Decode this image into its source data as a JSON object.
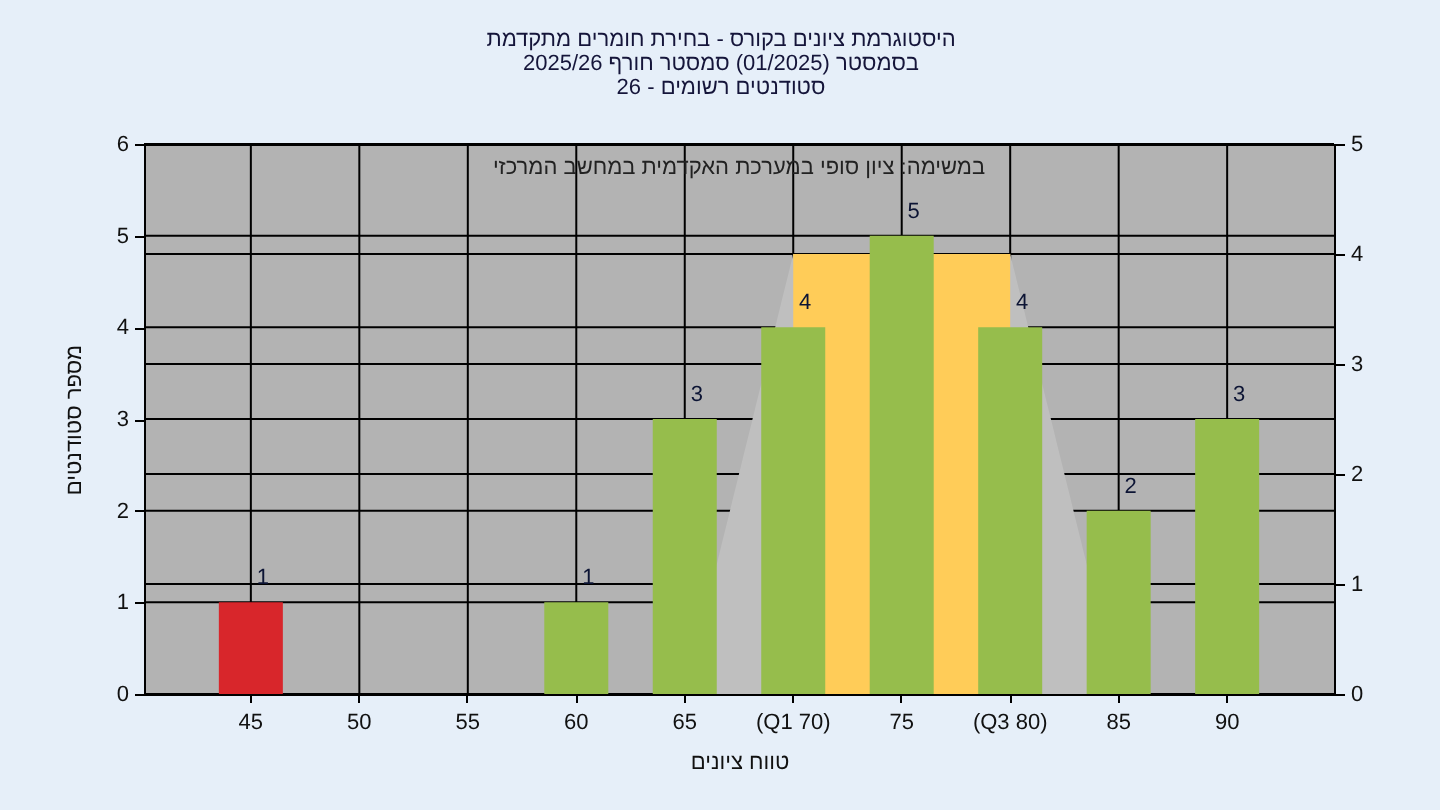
{
  "chart_data": {
    "type": "bar",
    "title": "היסטוגרמת ציונים בקורס - בחירת חומרים מתקדמת\nבסמסטר (01/2025) סמסטר חורף 2025/26\nסטודנטים רשומים - 26",
    "annotations": [
      "במשימה: ציון סופי במערכת האקדמית במחשב המרכזי"
    ],
    "xlabel": "טווח ציונים",
    "ylabel": "מספר סטודנטים",
    "categories": [
      "45",
      "50",
      "55",
      "60",
      "65",
      "(Q1 70)",
      "75",
      "(Q3 80)",
      "85",
      "90"
    ],
    "ylim": [
      0,
      6
    ],
    "yticks": [
      0,
      1,
      2,
      3,
      4,
      5,
      6
    ],
    "y2lim": [
      0,
      5
    ],
    "y2ticks": [
      0,
      1,
      2,
      3,
      4,
      5
    ],
    "grid": true,
    "series": [
      {
        "type": "area",
        "axis": "y2",
        "color": "#bfbfbf",
        "values": [
          null,
          null,
          null,
          null,
          0,
          4,
          null,
          4,
          0,
          0
        ]
      },
      {
        "type": "area",
        "axis": "y2",
        "color": "#ffcc58",
        "values": [
          null,
          null,
          null,
          null,
          null,
          4,
          null,
          4,
          null,
          null
        ]
      },
      {
        "colors": [
          "#d8262b",
          "#96bd4c",
          "#96bd4c",
          "#96bd4c",
          "#96bd4c",
          "#96bd4c",
          "#96bd4c",
          "#96bd4c",
          "#96bd4c",
          "#96bd4c"
        ],
        "values": [
          1,
          0,
          0,
          1,
          3,
          4,
          5,
          4,
          2,
          3
        ],
        "value_labels": [
          "1",
          null,
          null,
          "1",
          "3",
          "4",
          "5",
          "4",
          "2",
          "3"
        ]
      }
    ]
  }
}
